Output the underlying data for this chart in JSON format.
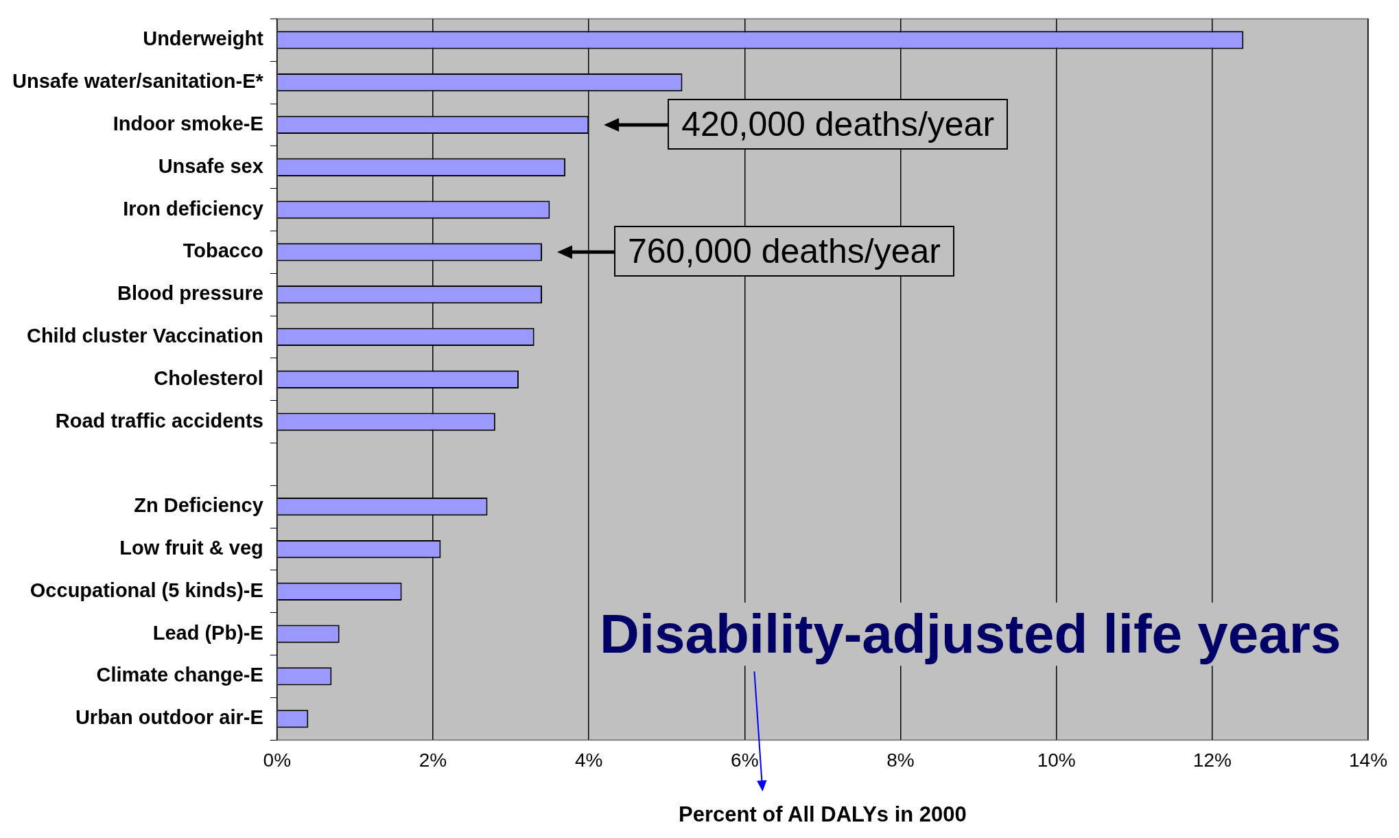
{
  "chart_data": {
    "type": "bar",
    "orientation": "horizontal",
    "xlabel": "Percent of All DALYs in 2000",
    "categories": [
      "Underweight",
      "Unsafe water/sanitation-E*",
      "Indoor smoke-E",
      "Unsafe sex",
      "Iron deficiency",
      "Tobacco",
      "Blood pressure",
      "Child cluster Vaccination",
      "Cholesterol",
      "Road traffic accidents",
      null,
      "Zn Deficiency",
      "Low fruit & veg",
      "Occupational (5 kinds)-E",
      "Lead (Pb)-E",
      "Climate change-E",
      "Urban outdoor air-E"
    ],
    "values": [
      12.4,
      5.2,
      4.0,
      3.7,
      3.5,
      3.4,
      3.4,
      3.3,
      3.1,
      2.8,
      null,
      2.7,
      2.1,
      1.6,
      0.8,
      0.7,
      0.4
    ],
    "color": "#9999ff",
    "xlim": [
      0,
      14
    ],
    "xticks": [
      {
        "value": 0,
        "label": "0%"
      },
      {
        "value": 2,
        "label": "2%"
      },
      {
        "value": 4,
        "label": "4%"
      },
      {
        "value": 6,
        "label": "6%"
      },
      {
        "value": 8,
        "label": "8%"
      },
      {
        "value": 10,
        "label": "10%"
      },
      {
        "value": 12,
        "label": "12%"
      },
      {
        "value": 14,
        "label": "14%"
      }
    ],
    "grid": "x",
    "legend": false,
    "annotations": [
      {
        "text": "420,000 deaths/year",
        "x": 4.0,
        "y": "Indoor smoke-E"
      },
      {
        "text": "760,000 deaths/year",
        "x": 3.4,
        "y": "Tobacco"
      },
      "Disability-adjusted life years"
    ]
  }
}
